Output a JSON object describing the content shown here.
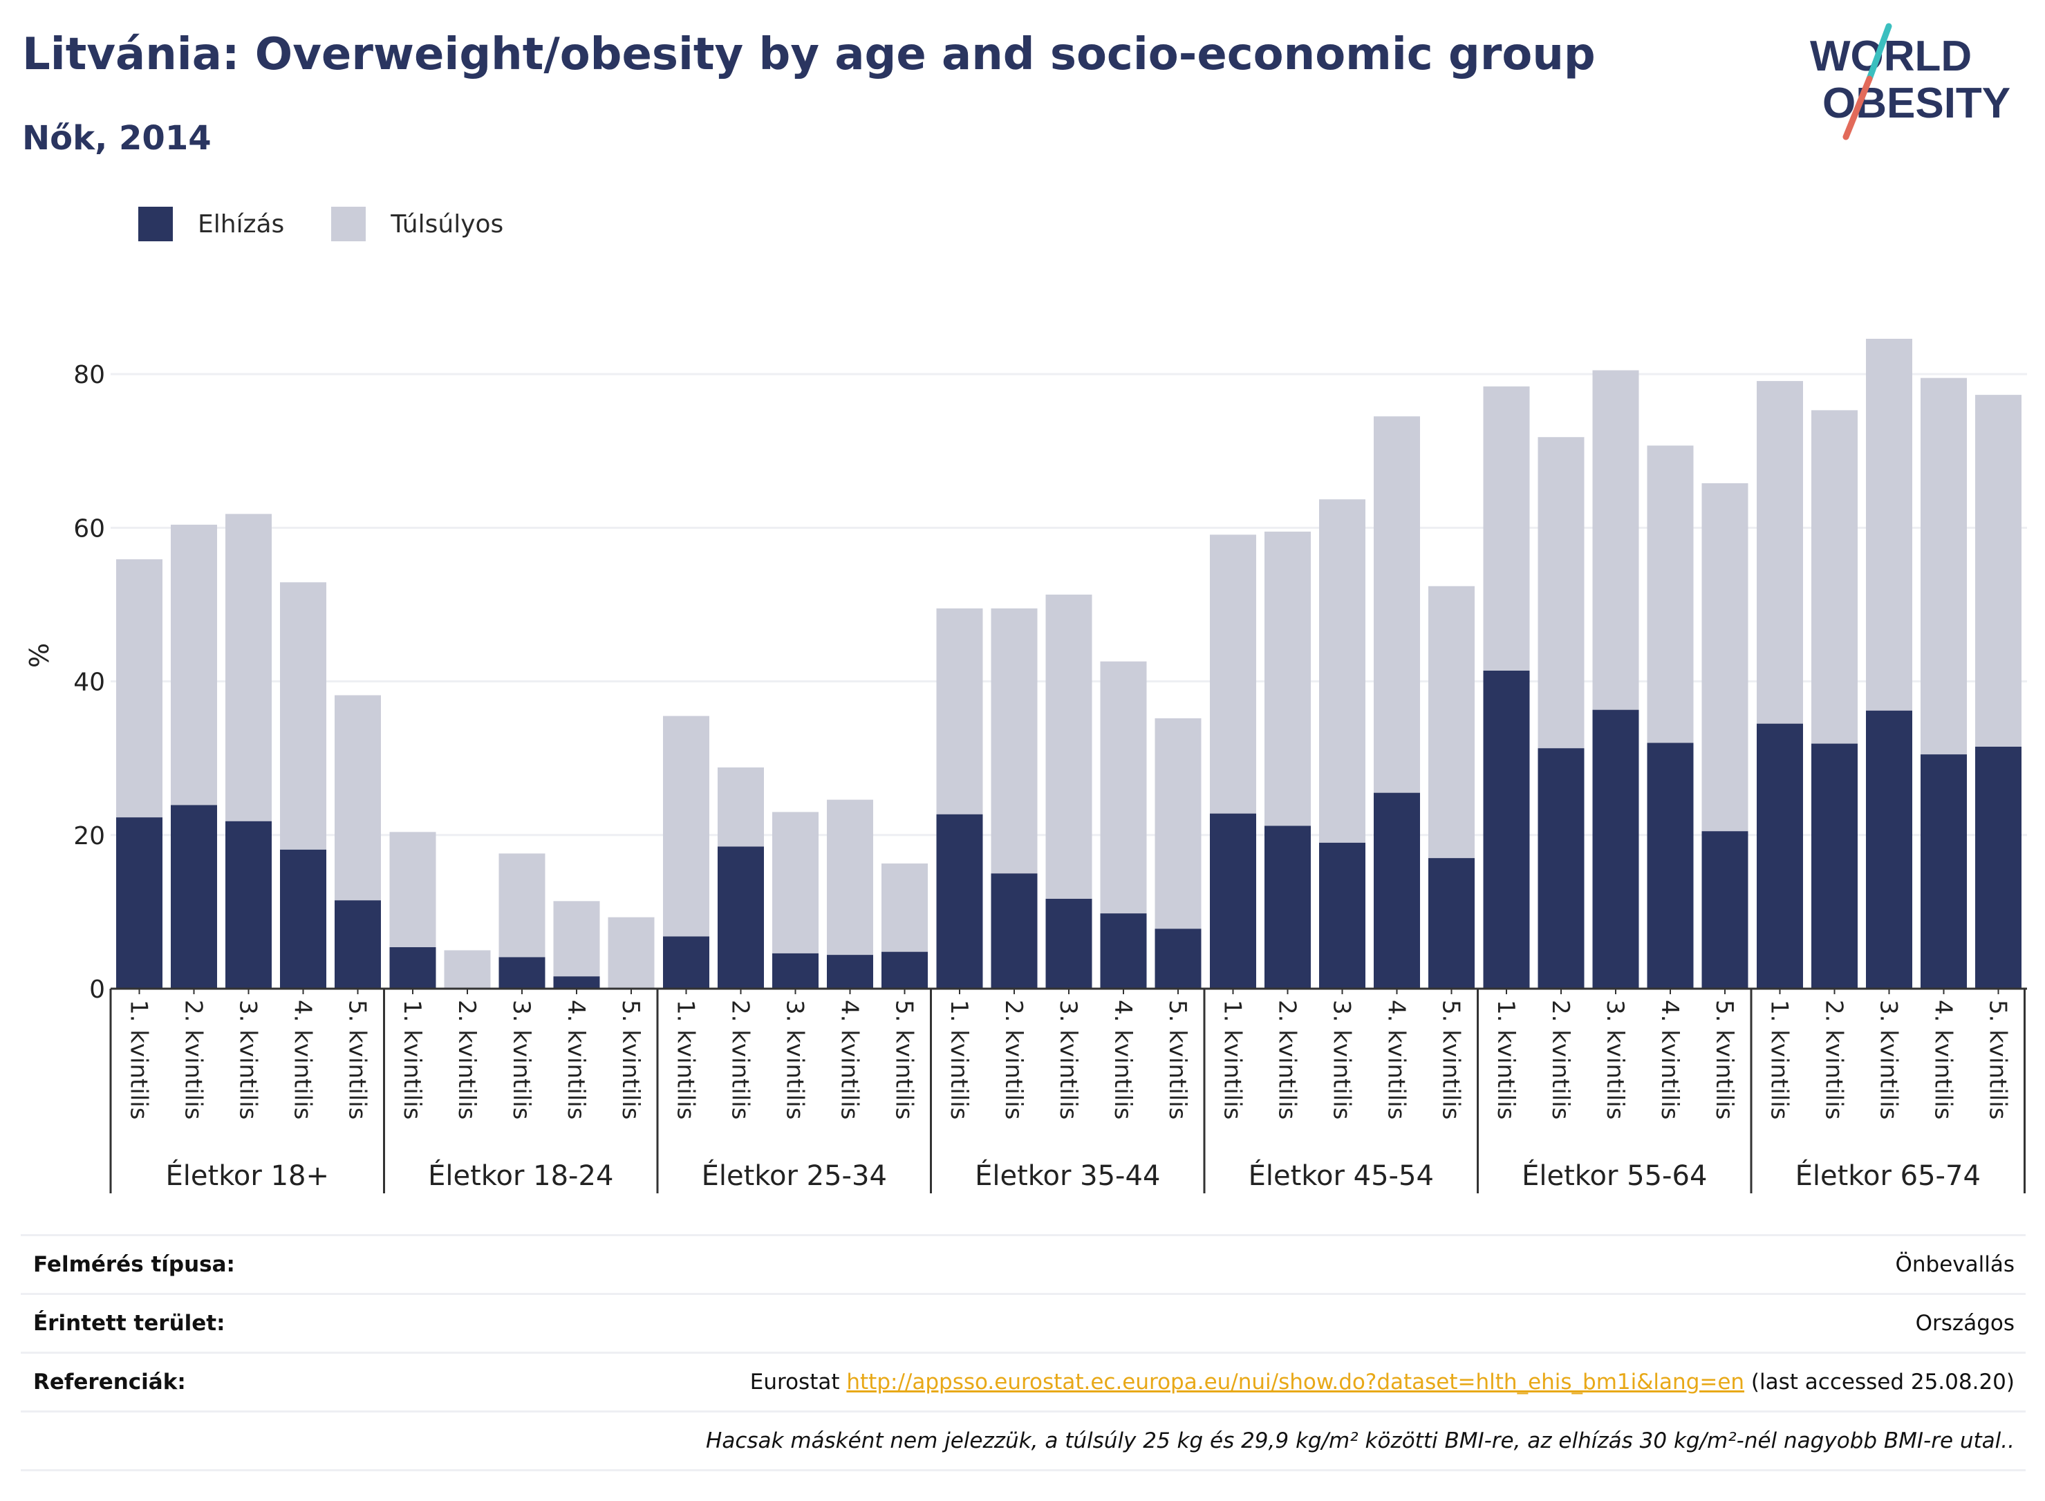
{
  "title": "Litvánia: Overweight/obesity by age and socio-economic group",
  "subtitle": "Nők, 2014",
  "logo": {
    "line1": "WORLD",
    "line2": "OBESITY"
  },
  "colors": {
    "obese": "#2a3560",
    "overweight": "#cbcdd9",
    "grid": "#eeeff3",
    "accent_teal": "#3bbfbf",
    "accent_red": "#e26a5a",
    "link": "#e8a817"
  },
  "chart_data": {
    "type": "bar",
    "stacked": true,
    "title": "Litvánia: Overweight/obesity by age and socio-economic group",
    "subtitle": "Nők, 2014",
    "ylabel": "%",
    "ylim": [
      0,
      90
    ],
    "yticks": [
      0,
      20,
      40,
      60,
      80
    ],
    "grid": true,
    "legend": {
      "position": "top-left",
      "entries": [
        "Elhízás",
        "Túlsúlyos"
      ]
    },
    "groups": [
      "Életkor 18+",
      "Életkor 18-24",
      "Életkor 25-34",
      "Életkor 35-44",
      "Életkor 45-54",
      "Életkor 55-64",
      "Életkor 65-74"
    ],
    "categories": [
      "1. kvintilis",
      "2. kvintilis",
      "3. kvintilis",
      "4. kvintilis",
      "5. kvintilis"
    ],
    "series": [
      {
        "name": "Elhízás",
        "values": [
          [
            22.3,
            23.9,
            21.8,
            18.1,
            11.5
          ],
          [
            5.4,
            0,
            4.1,
            1.6,
            0
          ],
          [
            6.8,
            18.5,
            4.6,
            4.4,
            4.8
          ],
          [
            22.7,
            15.0,
            11.7,
            9.8,
            7.8
          ],
          [
            22.8,
            21.2,
            19.0,
            25.5,
            17.0
          ],
          [
            41.4,
            31.3,
            36.3,
            32.0,
            20.5
          ],
          [
            34.5,
            31.9,
            36.2,
            30.5,
            31.5
          ]
        ]
      },
      {
        "name": "Túlsúlyos",
        "values": [
          [
            33.6,
            36.5,
            40.0,
            34.8,
            26.7
          ],
          [
            15.0,
            5.0,
            13.5,
            9.8,
            9.3
          ],
          [
            28.7,
            10.3,
            18.4,
            20.2,
            11.5
          ],
          [
            26.8,
            34.5,
            39.6,
            32.8,
            27.4
          ],
          [
            36.3,
            38.3,
            44.7,
            49.0,
            35.4
          ],
          [
            37.0,
            40.5,
            44.2,
            38.7,
            45.3
          ],
          [
            44.6,
            43.4,
            48.4,
            49.0,
            45.8
          ]
        ]
      }
    ]
  },
  "info": {
    "survey_label": "Felmérés típusa:",
    "survey_value": "Önbevallás",
    "area_label": "Érintett terület:",
    "area_value": "Országos",
    "ref_label": "Referenciák:",
    "ref_source": "Eurostat",
    "ref_url": "http://appsso.eurostat.ec.europa.eu/nui/show.do?dataset=hlth_ehis_bm1i&lang=en",
    "ref_accessed": "(last accessed 25.08.20)",
    "note": "Hacsak másként nem jelezzük, a túlsúly 25 kg és 29,9 kg/m² közötti BMI-re, az elhízás 30 kg/m²-nél nagyobb BMI-re utal.."
  }
}
